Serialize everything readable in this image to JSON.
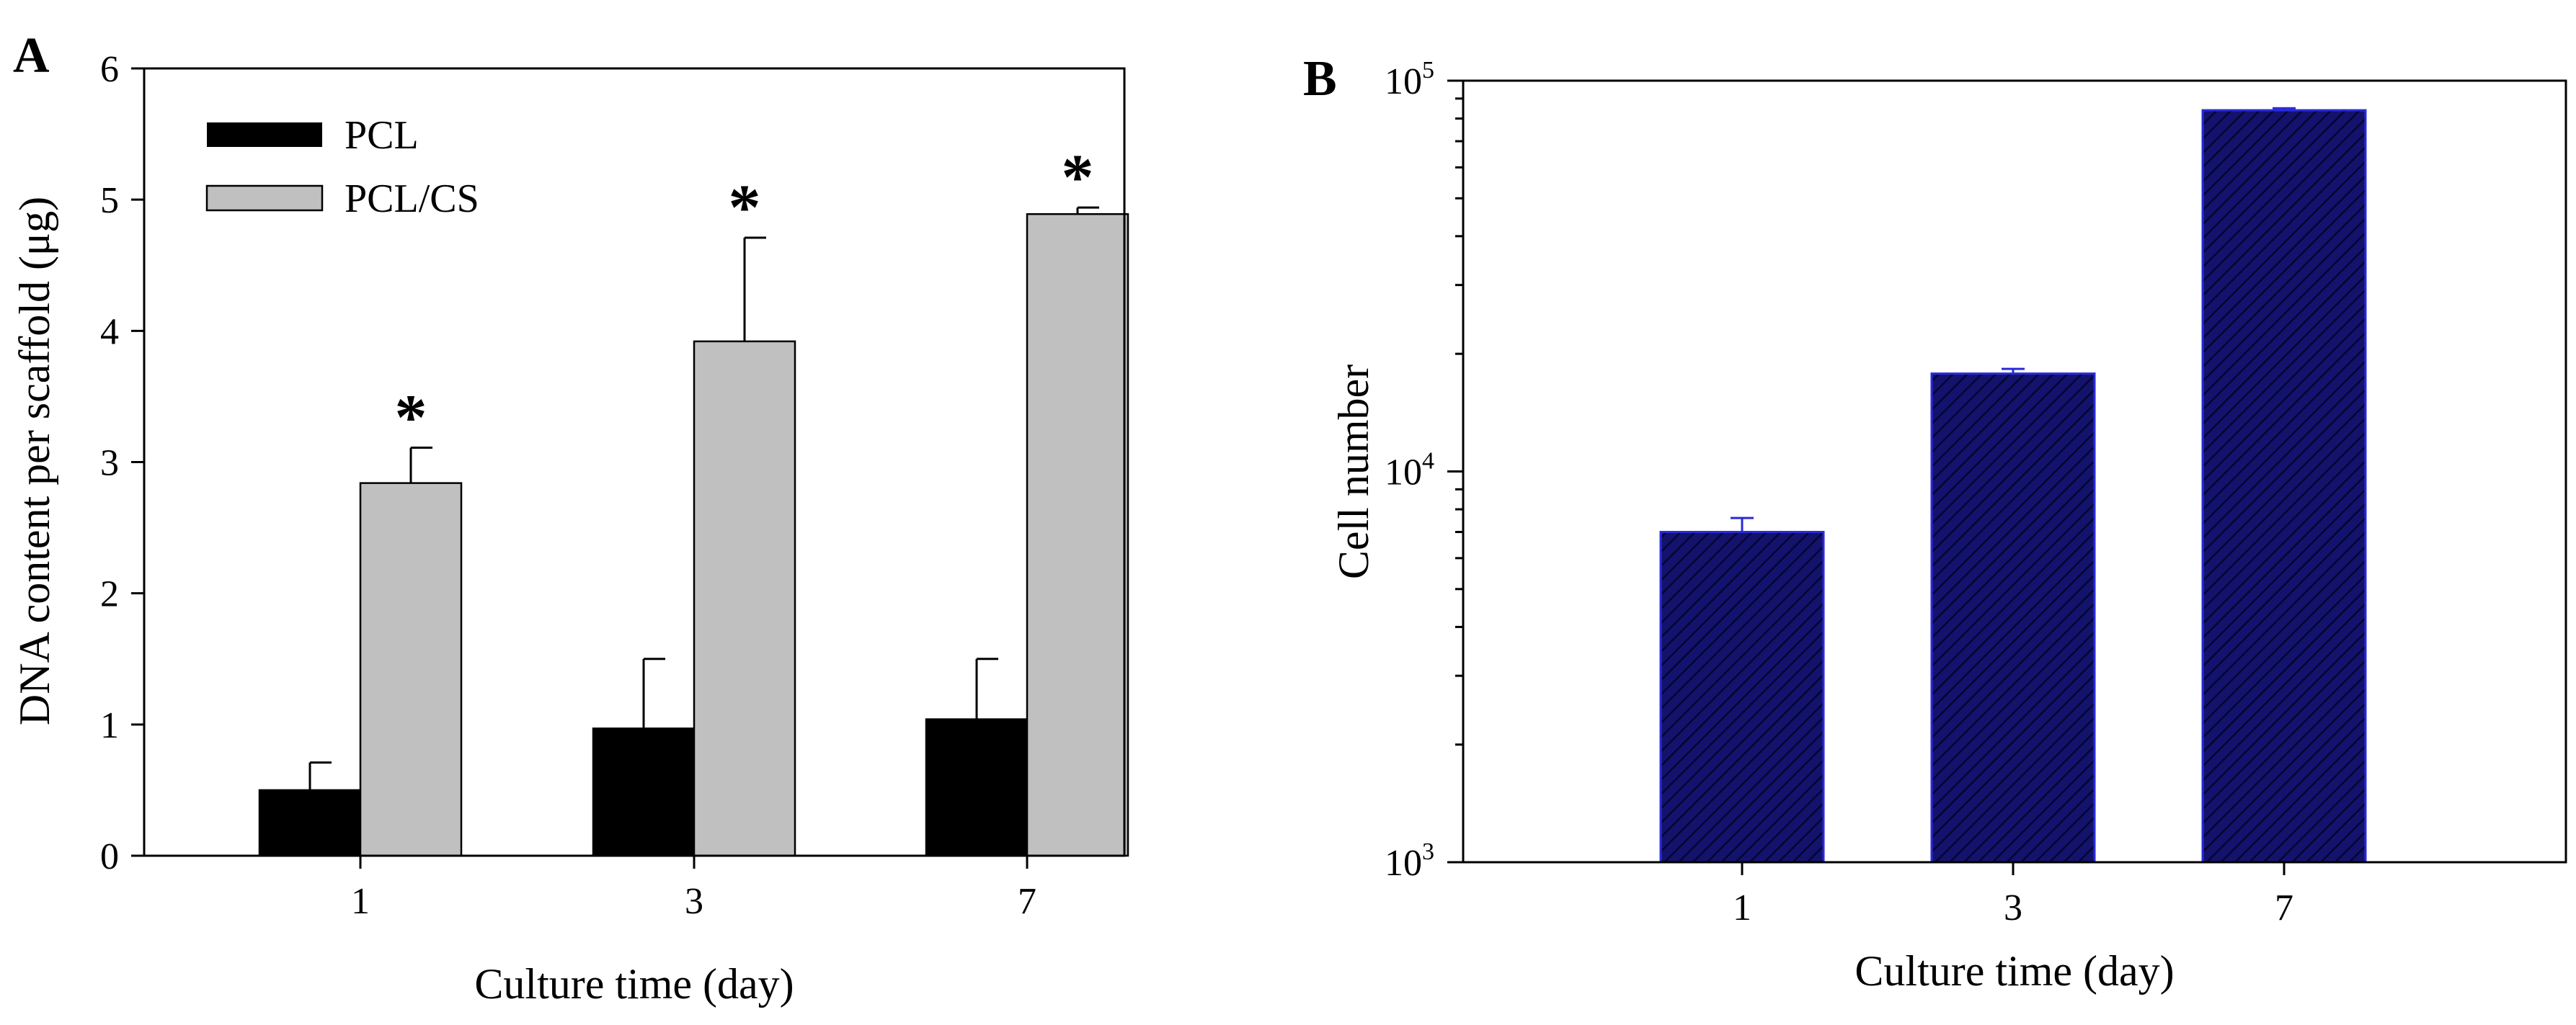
{
  "chart_data": [
    {
      "panel": "A",
      "type": "bar",
      "categories": [
        "1",
        "3",
        "7"
      ],
      "xlabel": "Culture time (day)",
      "ylabel": "DNA content per scaffold (μg)",
      "ylim": [
        0,
        6
      ],
      "yticks": [
        "0",
        "1",
        "2",
        "3",
        "4",
        "5",
        "6"
      ],
      "legend_position": "top-left",
      "series": [
        {
          "name": "PCL",
          "color": "#000000",
          "values": [
            0.5,
            0.97,
            1.04
          ],
          "errors": [
            0.21,
            0.53,
            0.46
          ]
        },
        {
          "name": "PCL/CS",
          "color": "#c0c0c0",
          "values": [
            2.84,
            3.92,
            4.89
          ],
          "errors": [
            0.27,
            0.79,
            0.05
          ]
        }
      ],
      "significance_marker": "*",
      "significance_on": "PCL/CS"
    },
    {
      "panel": "B",
      "type": "bar",
      "categories": [
        "1",
        "3",
        "7"
      ],
      "xlabel": "Culture time (day)",
      "ylabel": "Cell number",
      "yscale": "log",
      "ylim": [
        1000,
        100000
      ],
      "yticks": [
        {
          "base": "10",
          "exp": "3"
        },
        {
          "base": "10",
          "exp": "4"
        },
        {
          "base": "10",
          "exp": "5"
        }
      ],
      "bar_color": "#14147a",
      "bar_edge": "#2a2ad8",
      "hatch": "diagonal",
      "values": [
        7000,
        17800,
        84000
      ],
      "errors": [
        600,
        500,
        1000
      ]
    }
  ]
}
